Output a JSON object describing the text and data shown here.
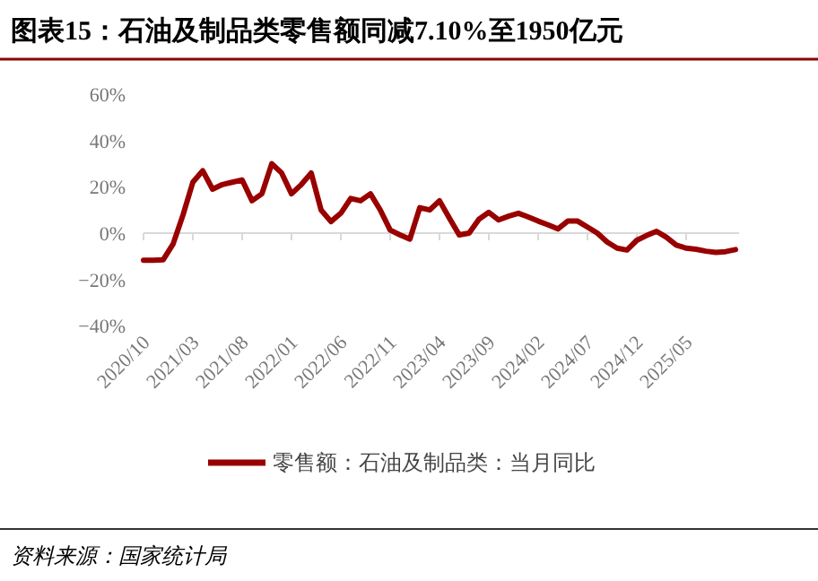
{
  "chart_data": {
    "type": "line",
    "title": "图表15：石油及制品类零售额同减7.10%至1950亿元",
    "categories": [
      "2020/10",
      null,
      null,
      null,
      null,
      "2021/03",
      null,
      null,
      null,
      null,
      "2021/08",
      null,
      null,
      null,
      null,
      "2022/01",
      null,
      null,
      null,
      null,
      "2022/06",
      null,
      null,
      null,
      null,
      "2022/11",
      null,
      null,
      null,
      null,
      "2023/04",
      null,
      null,
      null,
      null,
      "2023/09",
      null,
      null,
      null,
      null,
      "2024/02",
      null,
      null,
      null,
      null,
      "2024/07",
      null,
      null,
      null,
      null,
      "2024/12",
      null,
      null,
      null,
      null,
      "2025/05",
      null,
      null,
      null,
      null,
      null
    ],
    "series": [
      {
        "name": "零售额：石油及制品类：当月同比",
        "color": "#990000",
        "values": [
          -11.7,
          -11.7,
          -11.5,
          -4.7,
          7.8,
          22,
          27,
          19,
          21,
          22,
          23,
          14,
          17,
          30,
          26,
          17,
          21,
          26,
          10,
          5,
          8.6,
          15,
          14,
          17,
          10,
          1.3,
          -0.8,
          -2.6,
          11,
          10,
          14,
          6.5,
          -0.8,
          0,
          6,
          9,
          5.7,
          7.3,
          8.6,
          7,
          5.2,
          3.6,
          1.8,
          5.2,
          5.2,
          2.6,
          0,
          -3.9,
          -6.5,
          -7.3,
          -3.1,
          -1,
          0.8,
          -1.8,
          -5.2,
          -6.5,
          -7,
          -7.8,
          -8.3,
          -8,
          -7.1
        ]
      }
    ],
    "ylim": [
      -40,
      60
    ],
    "yticks": [
      {
        "value": -40,
        "label": "−40%"
      },
      {
        "value": -20,
        "label": "−20%"
      },
      {
        "value": 0,
        "label": "0%"
      },
      {
        "value": 20,
        "label": "20%"
      },
      {
        "value": 40,
        "label": "40%"
      },
      {
        "value": 60,
        "label": "60%"
      }
    ],
    "ref_lines": [
      {
        "axis": "y",
        "value": 0,
        "color": "#d9d9d9"
      }
    ],
    "legend": "bottom",
    "marker": "none",
    "line_style": "solid",
    "annotations": [
      "资料来源：国家统计局"
    ]
  }
}
